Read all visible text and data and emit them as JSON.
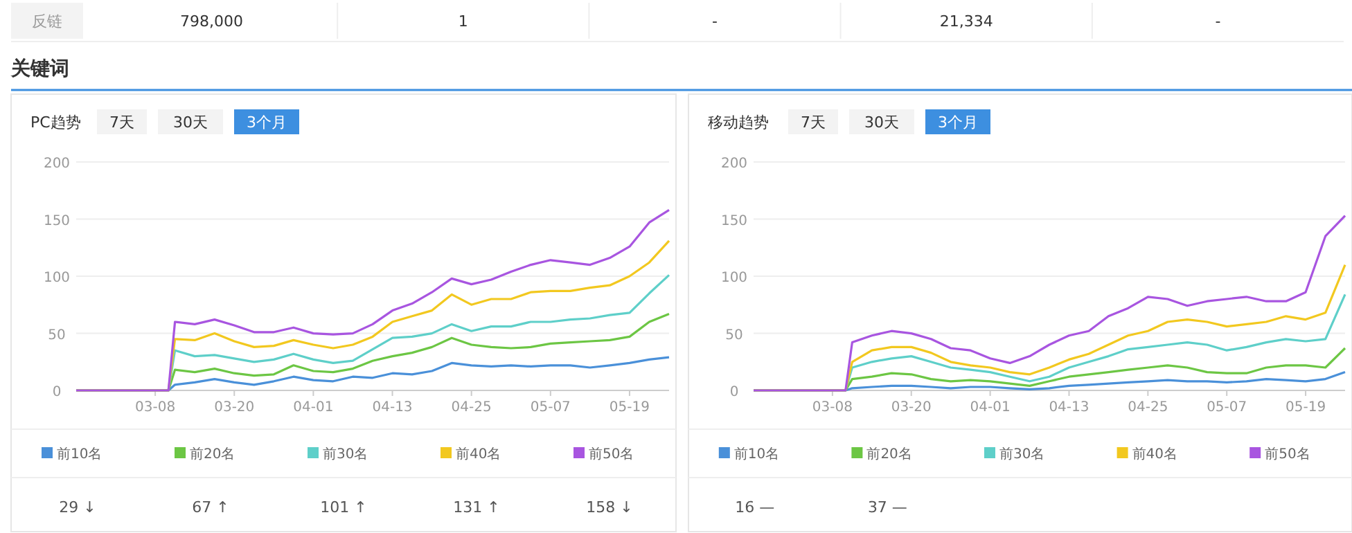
{
  "chart_data": [
    {
      "type": "other",
      "title": "关键词",
      "annotations": [
        "反链",
        "798,000",
        "1",
        "-",
        "21,334",
        "-"
      ]
    },
    {
      "type": "line",
      "title": "PC趋势",
      "annotations": [
        "7天",
        "30天",
        "3个月",
        "29 ↓",
        "67 ↑",
        "101 ↑",
        "131 ↑",
        "158 ↓"
      ],
      "x": [
        "--02-24",
        "--03-10",
        "--03-11",
        "--03-14",
        "--03-17",
        "--03-20",
        "--03-23",
        "--03-26",
        "--03-29",
        "--04-01",
        "--04-04",
        "--04-07",
        "--04-10",
        "--04-13",
        "--04-16",
        "--04-19",
        "--04-22",
        "--04-25",
        "--04-28",
        "--05-01",
        "--05-04",
        "--05-07",
        "--05-10",
        "--05-13",
        "--05-16",
        "--05-19",
        "--05-22",
        "--05-25"
      ],
      "xlim": [
        "--02-24",
        "--05-25"
      ],
      "xticks": [
        {
          "value": "--03-08",
          "label": "03-08"
        },
        {
          "value": "--03-20",
          "label": "03-20"
        },
        {
          "value": "--04-01",
          "label": "04-01"
        },
        {
          "value": "--04-13",
          "label": "04-13"
        },
        {
          "value": "--04-25",
          "label": "04-25"
        },
        {
          "value": "--05-07",
          "label": "05-07"
        },
        {
          "value": "--05-19",
          "label": "05-19"
        }
      ],
      "ylim": [
        0,
        200
      ],
      "yticks": [
        0,
        50,
        100,
        150,
        200
      ],
      "grid": "y",
      "legend": "bottom",
      "series": [
        {
          "name": "前10名",
          "color": "#4a90d9",
          "values": [
            0,
            0,
            5,
            7,
            10,
            7,
            5,
            8,
            12,
            9,
            8,
            12,
            11,
            15,
            14,
            17,
            24,
            22,
            21,
            22,
            21,
            22,
            22,
            20,
            22,
            24,
            27,
            29
          ]
        },
        {
          "name": "前20名",
          "color": "#6cc644",
          "values": [
            0,
            0,
            18,
            16,
            19,
            15,
            13,
            14,
            22,
            17,
            16,
            19,
            26,
            30,
            33,
            38,
            46,
            40,
            38,
            37,
            38,
            41,
            42,
            43,
            44,
            47,
            60,
            67
          ]
        },
        {
          "name": "前30名",
          "color": "#5ecfc9",
          "values": [
            0,
            0,
            35,
            30,
            31,
            28,
            25,
            27,
            32,
            27,
            24,
            26,
            36,
            46,
            47,
            50,
            58,
            52,
            56,
            56,
            60,
            60,
            62,
            63,
            66,
            68,
            85,
            101
          ]
        },
        {
          "name": "前40名",
          "color": "#f2c81f",
          "values": [
            0,
            0,
            45,
            44,
            50,
            43,
            38,
            39,
            44,
            40,
            37,
            40,
            47,
            60,
            65,
            70,
            84,
            75,
            80,
            80,
            86,
            87,
            87,
            90,
            92,
            100,
            112,
            131
          ]
        },
        {
          "name": "前50名",
          "color": "#a855e0",
          "values": [
            0,
            0,
            60,
            58,
            62,
            57,
            51,
            51,
            55,
            50,
            49,
            50,
            58,
            70,
            76,
            86,
            98,
            93,
            97,
            104,
            110,
            114,
            112,
            110,
            116,
            126,
            147,
            158
          ]
        }
      ]
    },
    {
      "type": "line",
      "title": "移动趋势",
      "annotations": [
        "7天",
        "30天",
        "3个月",
        "16 —",
        "37 —"
      ],
      "x": [
        "--02-24",
        "--03-10",
        "--03-11",
        "--03-14",
        "--03-17",
        "--03-20",
        "--03-23",
        "--03-26",
        "--03-29",
        "--04-01",
        "--04-04",
        "--04-07",
        "--04-10",
        "--04-13",
        "--04-16",
        "--04-19",
        "--04-22",
        "--04-25",
        "--04-28",
        "--05-01",
        "--05-04",
        "--05-07",
        "--05-10",
        "--05-13",
        "--05-16",
        "--05-19",
        "--05-22",
        "--05-25"
      ],
      "xlim": [
        "--02-24",
        "--05-25"
      ],
      "xticks": [
        {
          "value": "--03-08",
          "label": "03-08"
        },
        {
          "value": "--03-20",
          "label": "03-20"
        },
        {
          "value": "--04-01",
          "label": "04-01"
        },
        {
          "value": "--04-13",
          "label": "04-13"
        },
        {
          "value": "--04-25",
          "label": "04-25"
        },
        {
          "value": "--05-07",
          "label": "05-07"
        },
        {
          "value": "--05-19",
          "label": "05-19"
        }
      ],
      "ylim": [
        0,
        200
      ],
      "yticks": [
        0,
        50,
        100,
        150,
        200
      ],
      "grid": "y",
      "legend": "bottom",
      "series": [
        {
          "name": "前10名",
          "color": "#4a90d9",
          "values": [
            0,
            0,
            2,
            3,
            4,
            4,
            3,
            2,
            3,
            3,
            2,
            1,
            2,
            4,
            5,
            6,
            7,
            8,
            9,
            8,
            8,
            7,
            8,
            10,
            9,
            8,
            10,
            16
          ]
        },
        {
          "name": "前20名",
          "color": "#6cc644",
          "values": [
            0,
            0,
            10,
            12,
            15,
            14,
            10,
            8,
            9,
            8,
            6,
            4,
            8,
            12,
            14,
            16,
            18,
            20,
            22,
            20,
            16,
            15,
            15,
            20,
            22,
            22,
            20,
            37
          ]
        },
        {
          "name": "前30名",
          "color": "#5ecfc9",
          "values": [
            0,
            0,
            20,
            25,
            28,
            30,
            25,
            20,
            18,
            16,
            12,
            8,
            12,
            20,
            25,
            30,
            36,
            38,
            40,
            42,
            40,
            35,
            38,
            42,
            45,
            43,
            45,
            84
          ]
        },
        {
          "name": "前40名",
          "color": "#f2c81f",
          "values": [
            0,
            0,
            25,
            35,
            38,
            38,
            33,
            25,
            22,
            20,
            16,
            14,
            20,
            27,
            32,
            40,
            48,
            52,
            60,
            62,
            60,
            56,
            58,
            60,
            65,
            62,
            68,
            110
          ]
        },
        {
          "name": "前50名",
          "color": "#a855e0",
          "values": [
            0,
            0,
            42,
            48,
            52,
            50,
            45,
            37,
            35,
            28,
            24,
            30,
            40,
            48,
            52,
            65,
            72,
            82,
            80,
            74,
            78,
            80,
            82,
            78,
            78,
            86,
            135,
            153
          ]
        }
      ]
    }
  ]
}
